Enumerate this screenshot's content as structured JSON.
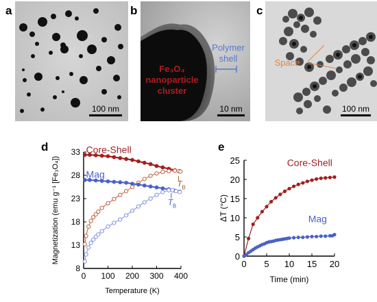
{
  "panels": {
    "a": {
      "letter": "a",
      "scalebar": "100 nm"
    },
    "b": {
      "letter": "b",
      "scalebar": "10 nm",
      "core_label_line1": "Fe₃O₄",
      "core_label_line2": "nanoparticle",
      "core_label_line3": "cluster",
      "shell_label_line1": "Polymer",
      "shell_label_line2": "shell",
      "core_color": "#b01c1c",
      "shell_color": "#5577cc"
    },
    "c": {
      "letter": "c",
      "scalebar": "100 nm",
      "space_label": "Space",
      "space_color": "#e8823a"
    },
    "d": {
      "letter": "d"
    },
    "e": {
      "letter": "e"
    }
  },
  "chart_data": [
    {
      "id": "d",
      "type": "line",
      "xlabel": "Temperature (K)",
      "ylabel": "Magnetization (emu g⁻¹ [Fe₃O₄])",
      "xlim": [
        0,
        400
      ],
      "ylim": [
        8,
        33
      ],
      "xticks": [
        0,
        100,
        200,
        300,
        400
      ],
      "yticks": [
        8,
        13,
        18,
        23,
        28,
        33
      ],
      "series": [
        {
          "name": "Core-Shell",
          "kind": "FC",
          "color": "#a31f1f",
          "filled": true,
          "x": [
            5,
            25,
            50,
            75,
            100,
            125,
            150,
            175,
            200,
            225,
            250,
            275,
            300,
            325,
            350,
            375,
            395
          ],
          "y": [
            32.4,
            32.4,
            32.3,
            32.2,
            32.1,
            31.9,
            31.7,
            31.5,
            31.3,
            31.0,
            30.7,
            30.4,
            30.0,
            29.7,
            29.4,
            29.1,
            28.9
          ]
        },
        {
          "name": "",
          "kind": "ZFC",
          "color": "#c0603a",
          "filled": false,
          "x": [
            5,
            10,
            20,
            30,
            40,
            50,
            60,
            75,
            100,
            125,
            150,
            175,
            200,
            225,
            250,
            275,
            300,
            325,
            350,
            375,
            390,
            398
          ],
          "y": [
            13.2,
            15.0,
            17.0,
            18.2,
            19.0,
            19.6,
            20.2,
            21.0,
            22.0,
            22.9,
            23.8,
            24.6,
            25.5,
            26.4,
            27.2,
            27.9,
            28.4,
            28.7,
            28.9,
            29.0,
            28.9,
            28.8
          ]
        },
        {
          "name": "Mag",
          "kind": "FC",
          "color": "#4a62c8",
          "filled": true,
          "x": [
            5,
            25,
            50,
            75,
            100,
            125,
            150,
            175,
            200,
            225,
            250,
            275,
            300,
            325,
            350,
            375,
            395
          ],
          "y": [
            27.0,
            27.0,
            26.9,
            26.8,
            26.7,
            26.6,
            26.5,
            26.4,
            26.2,
            26.0,
            25.8,
            25.6,
            25.4,
            25.2,
            25.0,
            24.7,
            24.5
          ]
        },
        {
          "name": "",
          "kind": "ZFC",
          "color": "#7d92e0",
          "filled": false,
          "x": [
            5,
            10,
            20,
            30,
            40,
            50,
            60,
            75,
            100,
            125,
            150,
            175,
            200,
            225,
            250,
            275,
            300,
            325,
            350,
            365,
            380,
            395
          ],
          "y": [
            9.5,
            11.0,
            12.5,
            13.5,
            14.2,
            14.8,
            15.3,
            16.0,
            17.0,
            17.8,
            18.5,
            19.4,
            20.4,
            21.3,
            22.2,
            23.0,
            23.8,
            24.4,
            24.8,
            24.8,
            24.6,
            24.4
          ]
        }
      ],
      "annotations": [
        {
          "text": "Core-Shell",
          "color": "#a31f1f"
        },
        {
          "text": "Mag",
          "color": "#4a62c8"
        },
        {
          "text": "T",
          "sub": "B",
          "color": "#a0602a"
        },
        {
          "text": "T",
          "sub": "B",
          "color": "#4a62c8"
        }
      ]
    },
    {
      "id": "e",
      "type": "line",
      "xlabel": "Time (min)",
      "ylabel": "ΔT (°C)",
      "xlim": [
        0,
        20
      ],
      "ylim": [
        0,
        25
      ],
      "xticks": [
        0,
        5,
        10,
        15,
        20
      ],
      "yticks": [
        0,
        5,
        10,
        15,
        20,
        25
      ],
      "series": [
        {
          "name": "Core-Shell",
          "color": "#a31f1f",
          "x": [
            0,
            1,
            2,
            3,
            4,
            5,
            6,
            7,
            8,
            9,
            10,
            11,
            12,
            13,
            14,
            15,
            16,
            17,
            18,
            19,
            20
          ],
          "y": [
            0,
            4.6,
            8.3,
            10.0,
            11.6,
            12.9,
            14.2,
            15.2,
            16.1,
            16.9,
            17.6,
            18.2,
            18.7,
            19.1,
            19.5,
            19.8,
            20.1,
            20.3,
            20.4,
            20.5,
            20.6
          ]
        },
        {
          "name": "Mag",
          "color": "#4a62c8",
          "x": [
            0,
            0.5,
            1,
            1.5,
            2,
            2.5,
            3,
            3.5,
            4,
            4.5,
            5,
            5.5,
            6,
            6.5,
            7,
            7.5,
            8,
            8.5,
            9,
            9.5,
            10,
            11,
            12,
            13,
            14,
            15,
            16,
            17,
            18,
            19,
            19.5,
            20
          ],
          "y": [
            0,
            0.4,
            0.9,
            1.3,
            1.7,
            2.1,
            2.4,
            2.7,
            3.0,
            3.2,
            3.5,
            3.7,
            3.8,
            3.9,
            4.1,
            4.2,
            4.3,
            4.4,
            4.5,
            4.6,
            4.7,
            4.8,
            4.9,
            4.9,
            5.0,
            5.1,
            5.1,
            5.2,
            5.2,
            5.3,
            5.3,
            5.6
          ]
        }
      ]
    }
  ]
}
